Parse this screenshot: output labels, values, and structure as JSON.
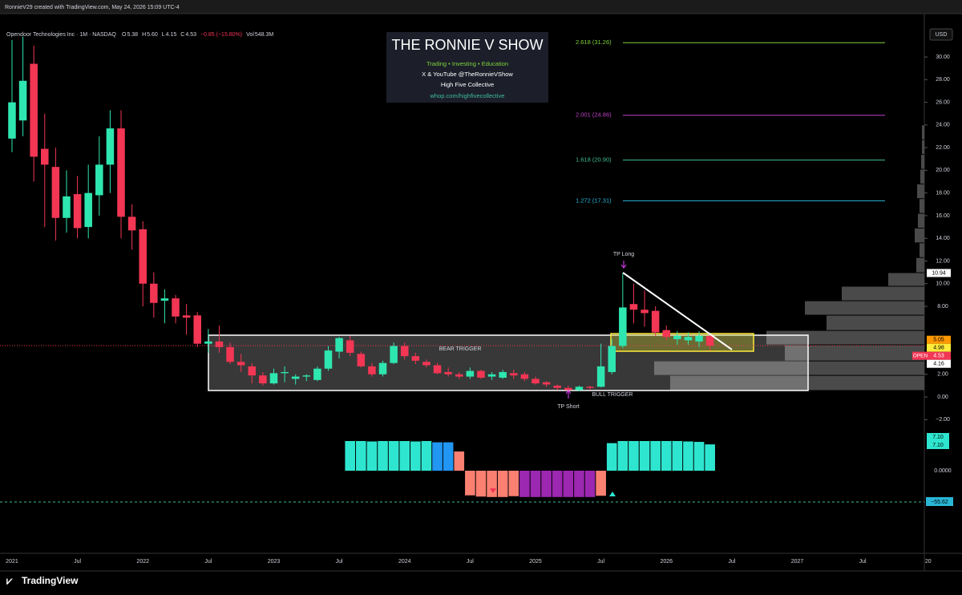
{
  "header": {
    "credit": "RonnieV29 created with TradingView.com, May 24, 2026 15:09 UTC-4",
    "symbol": "Opendoor Technologies Inc · 1M · NASDAQ",
    "legend_items": [
      {
        "key": "O",
        "value": "5.38"
      },
      {
        "key": "H",
        "value": "5.60"
      },
      {
        "key": "L",
        "value": "4.15"
      },
      {
        "key": "C",
        "value": "4.53"
      },
      {
        "key": "",
        "value": "−0.85 (−15.80%)"
      },
      {
        "key": "Vol",
        "value": "548.3M"
      }
    ],
    "currency": "USD"
  },
  "logo": {
    "title": "THE RONNIE V SHOW",
    "tagline": "Trading • Investing • Education",
    "social": "X & YouTube @TheRonnieVShow",
    "group": "High Five Collective",
    "url": "whop.com/highfivecollective"
  },
  "annotations": {
    "tp_long": "TP Long",
    "tp_short": "TP Short",
    "bear": "BEAR TRIGGER",
    "bull": "BULL TRIGGER",
    "osc_line": "−55.62"
  },
  "footer": {
    "brand": "TradingView"
  },
  "chart_data": [
    {
      "type": "candlestick",
      "up_color": "#2ee6b0",
      "down_color": "#f23654",
      "series": [
        {
          "name": "Opendoor Technologies Inc",
          "open": [
            22.8,
            24.4,
            29.4,
            21.9,
            20.3,
            15.8,
            17.9,
            15.0,
            17.8,
            20.5,
            23.7,
            15.9,
            14.8,
            10.0,
            8.5,
            8.7,
            7.2,
            7.2,
            4.7,
            4.9,
            4.4,
            3.1,
            2.7,
            1.9,
            1.2,
            2.1,
            1.6,
            1.8,
            1.5,
            2.5,
            4.0,
            5.0,
            3.8,
            2.7,
            2.0,
            3.0,
            4.5,
            3.6,
            3.1,
            2.8,
            2.2,
            2.0,
            1.8,
            2.3,
            1.8,
            1.7,
            2.1,
            2.0,
            1.6,
            1.3,
            1.0,
            0.8,
            0.6,
            0.9,
            0.9,
            2.2,
            4.5,
            8.2,
            7.7,
            7.6,
            5.9,
            5.1,
            5.0,
            4.9,
            5.38
          ],
          "high": [
            31.5,
            31.8,
            31.0,
            25.0,
            22.0,
            20.0,
            19.5,
            20.5,
            23.0,
            25.3,
            25.3,
            17.0,
            15.5,
            11.0,
            9.5,
            9.0,
            8.2,
            7.5,
            6.0,
            6.3,
            4.8,
            3.8,
            3.0,
            2.2,
            2.5,
            2.7,
            2.0,
            2.0,
            2.7,
            4.5,
            5.3,
            5.4,
            4.0,
            3.0,
            3.2,
            4.8,
            4.8,
            3.9,
            3.3,
            3.0,
            2.6,
            2.2,
            2.6,
            2.4,
            2.2,
            2.4,
            2.4,
            2.2,
            1.8,
            1.4,
            1.1,
            1.0,
            1.0,
            1.0,
            4.7,
            5.1,
            10.9,
            10.0,
            9.4,
            8.0,
            6.3,
            5.8,
            5.7,
            5.8,
            5.6
          ],
          "low": [
            21.6,
            23.0,
            19.0,
            15.0,
            13.8,
            14.5,
            14.0,
            14.0,
            16.0,
            18.0,
            14.0,
            13.0,
            8.0,
            7.0,
            6.5,
            6.5,
            5.5,
            4.4,
            3.9,
            3.9,
            2.9,
            2.2,
            1.2,
            1.0,
            1.1,
            1.3,
            1.1,
            1.4,
            1.4,
            2.3,
            3.4,
            3.6,
            2.6,
            1.8,
            1.8,
            2.9,
            3.3,
            2.9,
            2.6,
            2.0,
            1.8,
            1.6,
            1.6,
            1.6,
            1.5,
            1.6,
            1.6,
            1.4,
            1.1,
            0.9,
            0.6,
            0.5,
            0.5,
            0.6,
            0.85,
            2.0,
            4.3,
            6.5,
            6.2,
            5.4,
            5.0,
            4.6,
            4.6,
            4.4,
            4.15
          ],
          "close": [
            26.0,
            27.9,
            21.2,
            20.5,
            15.8,
            17.7,
            14.9,
            18.0,
            20.5,
            23.7,
            15.9,
            14.7,
            10.0,
            8.3,
            8.7,
            7.1,
            7.0,
            4.7,
            4.9,
            4.4,
            3.1,
            2.8,
            1.9,
            1.2,
            2.1,
            2.2,
            1.8,
            1.9,
            2.5,
            4.1,
            5.2,
            3.9,
            2.7,
            2.0,
            3.0,
            4.5,
            3.6,
            3.2,
            2.8,
            2.1,
            2.0,
            1.8,
            2.3,
            1.7,
            2.0,
            2.2,
            1.9,
            1.6,
            1.2,
            1.1,
            0.8,
            0.6,
            0.9,
            0.8,
            2.7,
            4.5,
            7.9,
            7.7,
            7.4,
            5.7,
            5.3,
            5.4,
            5.3,
            5.4,
            4.53
          ]
        }
      ],
      "xlim": [
        -1.1,
        84.9
      ],
      "xticks": [
        {
          "value": 0,
          "label": "2021"
        },
        {
          "value": 6,
          "label": "Jul"
        },
        {
          "value": 12,
          "label": "2022"
        },
        {
          "value": 18,
          "label": "Jul"
        },
        {
          "value": 24,
          "label": "2023"
        },
        {
          "value": 30,
          "label": "Jul"
        },
        {
          "value": 36,
          "label": "2024"
        },
        {
          "value": 42,
          "label": "Jul"
        },
        {
          "value": 48,
          "label": "2025"
        },
        {
          "value": 54,
          "label": "Jul"
        },
        {
          "value": 60,
          "label": "2026"
        },
        {
          "value": 66,
          "label": "Jul"
        },
        {
          "value": 72,
          "label": "2027"
        },
        {
          "value": 78,
          "label": "Jul"
        },
        {
          "value": 84,
          "label": "20"
        }
      ],
      "ylim": [
        -3.18,
        32.34
      ],
      "yticks": [
        {
          "value": -2,
          "label": "−2.00"
        },
        {
          "value": 0,
          "label": "0.00"
        },
        {
          "value": 2,
          "label": "2.00"
        },
        {
          "value": 8,
          "label": "8.00"
        },
        {
          "value": 10,
          "label": "10.00"
        },
        {
          "value": 12,
          "label": "12.00"
        },
        {
          "value": 14,
          "label": "14.00"
        },
        {
          "value": 16,
          "label": "16.00"
        },
        {
          "value": 18,
          "label": "18.00"
        },
        {
          "value": 20,
          "label": "20.00"
        },
        {
          "value": 22,
          "label": "22.00"
        },
        {
          "value": 24,
          "label": "24.00"
        },
        {
          "value": 26,
          "label": "26.00"
        },
        {
          "value": 28,
          "label": "28.00"
        },
        {
          "value": 30,
          "label": "30.00"
        }
      ],
      "price_labels": [
        {
          "value": 10.94,
          "label": "10.94",
          "color": "#ffffff"
        },
        {
          "value": 5.05,
          "label": "5.05",
          "color": "#ff9800"
        },
        {
          "value": 4.98,
          "label": "4.98",
          "color": "#ffeb3b"
        },
        {
          "value": 4.53,
          "label": "4.53",
          "color": "#f23654",
          "tag": "OPEN"
        },
        {
          "value": 4.16,
          "label": "4.16",
          "color": "#ffffff"
        }
      ],
      "fib_levels": [
        {
          "value": 31.26,
          "label": "2.618 (31.26)",
          "color": "#7fd33b"
        },
        {
          "value": 24.86,
          "label": "2.001 (24.86)",
          "color": "#c040c8"
        },
        {
          "value": 20.9,
          "label": "1.618 (20.90)",
          "color": "#3dbd9a"
        },
        {
          "value": 17.31,
          "label": "1.272 (17.31)",
          "color": "#29b6d6"
        }
      ],
      "volume_profile": {
        "bins": [
          0.57,
          1.91,
          3.18,
          4.6,
          5.87,
          7.22,
          8.49,
          9.77,
          10.97,
          12.3,
          13.6,
          14.9,
          16.2,
          17.5,
          18.8,
          20.1,
          21.4,
          22.7,
          24.0
        ],
        "values": [
          317,
          337,
          174,
          197,
          122,
          149,
          103,
          45,
          10,
          6,
          12,
          8,
          6,
          9,
          5,
          4,
          3,
          3
        ],
        "color": "#4a4a4a"
      }
    },
    {
      "type": "histogram",
      "x": [
        31,
        32,
        33,
        34,
        35,
        36,
        37,
        38,
        39,
        40,
        41,
        42,
        43,
        44,
        45,
        46,
        47,
        48,
        49,
        50,
        51,
        52,
        53,
        54,
        55,
        56,
        57,
        58,
        59,
        60,
        61,
        62,
        63,
        64
      ],
      "values": [
        7.1,
        7.1,
        7.0,
        7.1,
        7.1,
        7.1,
        7.0,
        7.1,
        6.8,
        6.8,
        4.6,
        -5.9,
        -6.2,
        -6.3,
        -6.3,
        -6.1,
        -6.3,
        -6.3,
        -6.3,
        -6.3,
        -6.3,
        -6.3,
        -6.3,
        -6.0,
        6.6,
        7.1,
        7.1,
        7.1,
        7.1,
        7.1,
        7.1,
        7.0,
        6.9,
        6.3
      ],
      "colors": [
        "#2ee6d0",
        "#2ee6d0",
        "#2ee6d0",
        "#2ee6d0",
        "#2ee6d0",
        "#2ee6d0",
        "#2ee6d0",
        "#2ee6d0",
        "#2196f3",
        "#2196f3",
        "#fa8072",
        "#fa8072",
        "#fa8072",
        "#fa8072",
        "#fa8072",
        "#fa8072",
        "#9c27b0",
        "#9c27b0",
        "#9c27b0",
        "#9c27b0",
        "#9c27b0",
        "#9c27b0",
        "#9c27b0",
        "#fa8072",
        "#2ee6d0",
        "#2ee6d0",
        "#2ee6d0",
        "#2ee6d0",
        "#2ee6d0",
        "#2ee6d0",
        "#2ee6d0",
        "#2ee6d0",
        "#2ee6d0",
        "#2ee6d0"
      ],
      "ylim": [
        -8.64,
        9.02
      ],
      "yticks": [
        {
          "value": 0,
          "label": "0.0000"
        }
      ],
      "value_labels": [
        {
          "value": 7.1,
          "label": "7.10"
        },
        {
          "value": 7.1,
          "label": "7.10"
        }
      ]
    }
  ]
}
